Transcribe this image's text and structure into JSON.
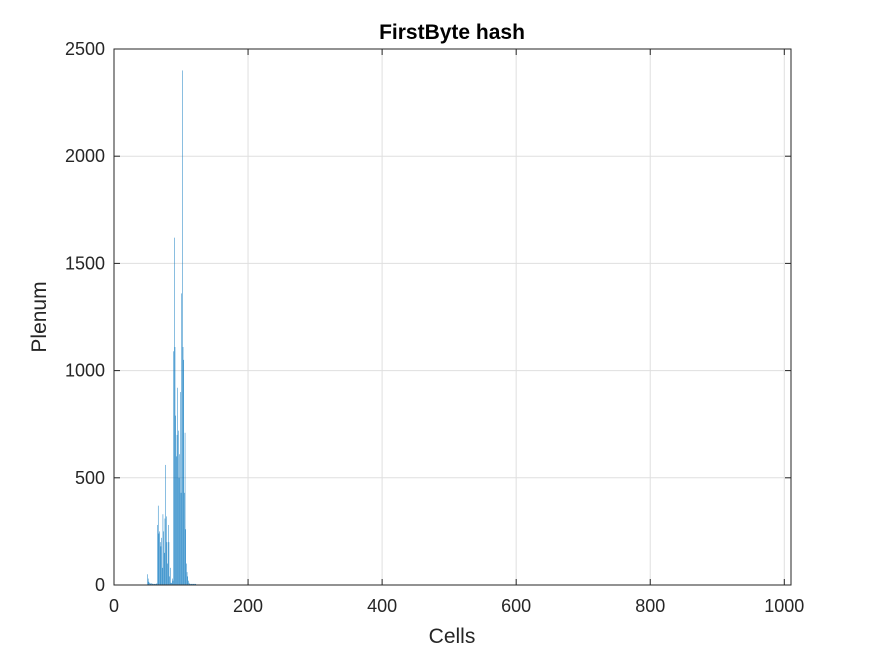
{
  "chart_data": {
    "type": "bar",
    "title": "FirstByte hash",
    "xlabel": "Cells",
    "ylabel": "Plenum",
    "xlim": [
      0,
      1010
    ],
    "ylim": [
      0,
      2500
    ],
    "xticks": [
      0,
      200,
      400,
      600,
      800,
      1000
    ],
    "yticks": [
      0,
      500,
      1000,
      1500,
      2000,
      2500
    ],
    "xtick_labels": [
      "0",
      "200",
      "400",
      "600",
      "800",
      "1000"
    ],
    "ytick_labels": [
      "0",
      "500",
      "1000",
      "1500",
      "2000",
      "2500"
    ],
    "grid": true,
    "bar_color": "#0072BD",
    "x": [
      50,
      51,
      52,
      53,
      54,
      55,
      56,
      57,
      58,
      59,
      60,
      61,
      62,
      63,
      64,
      65,
      66,
      67,
      68,
      69,
      70,
      71,
      72,
      73,
      74,
      75,
      76,
      77,
      78,
      79,
      80,
      81,
      82,
      83,
      84,
      85,
      86,
      87,
      88,
      89,
      90,
      91,
      92,
      93,
      94,
      95,
      96,
      97,
      98,
      99,
      100,
      101,
      102,
      103,
      104,
      105,
      106,
      107,
      108,
      109,
      110,
      111,
      112,
      113,
      114,
      115,
      116,
      117,
      118,
      119,
      120,
      121,
      122
    ],
    "values": [
      50,
      30,
      15,
      10,
      8,
      5,
      8,
      6,
      5,
      5,
      5,
      5,
      5,
      5,
      8,
      280,
      370,
      240,
      250,
      200,
      180,
      220,
      80,
      330,
      250,
      150,
      310,
      560,
      320,
      200,
      100,
      280,
      200,
      40,
      80,
      10,
      10,
      30,
      20,
      1090,
      1620,
      1110,
      790,
      600,
      700,
      920,
      720,
      500,
      610,
      900,
      430,
      1360,
      2400,
      1110,
      1050,
      430,
      710,
      260,
      100,
      60,
      40,
      20,
      10,
      5,
      5,
      5,
      5,
      5,
      5,
      5,
      5,
      5,
      5
    ]
  }
}
